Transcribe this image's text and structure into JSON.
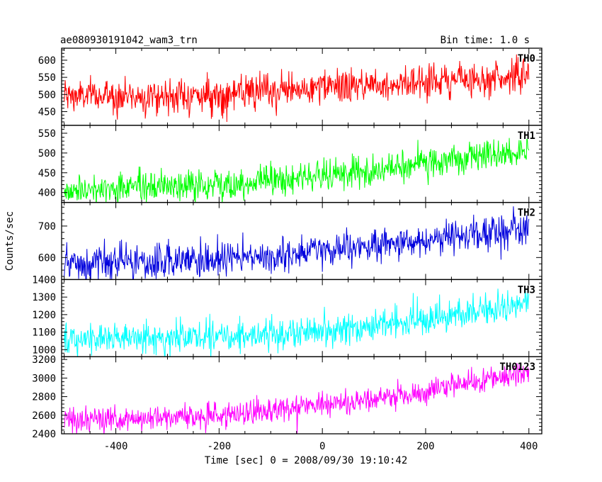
{
  "chart_data": {
    "type": "line",
    "title": "ae080930191042_wam3_trn",
    "subtitle": "Bin time: 1.0 s",
    "xlabel": "Time [sec] 0 = 2008/09/30 19:10:42",
    "ylabel": "Counts/sec",
    "xlim": [
      -505,
      425
    ],
    "x_range": [
      -500,
      400
    ],
    "x_ticks": [
      -400,
      -200,
      0,
      200,
      400
    ],
    "grid": false,
    "panels": [
      {
        "name": "TH0",
        "color": "#ff0000",
        "ylim": [
          410,
          635
        ],
        "y_ticks": [
          450,
          500,
          550,
          600
        ],
        "trend": [
          {
            "x": -500,
            "y": 495
          },
          {
            "x": -200,
            "y": 497
          },
          {
            "x": 100,
            "y": 530
          },
          {
            "x": 400,
            "y": 555
          }
        ],
        "noise": 25
      },
      {
        "name": "TH1",
        "color": "#00ff00",
        "ylim": [
          375,
          570
        ],
        "y_ticks": [
          400,
          450,
          500,
          550
        ],
        "trend": [
          {
            "x": -500,
            "y": 405
          },
          {
            "x": -200,
            "y": 420
          },
          {
            "x": 100,
            "y": 455
          },
          {
            "x": 400,
            "y": 505
          }
        ],
        "noise": 20
      },
      {
        "name": "TH2",
        "color": "#0000dd",
        "ylim": [
          530,
          775
        ],
        "y_ticks": [
          600,
          700
        ],
        "y_tick_labels": [
          "600",
          "700"
        ],
        "trend": [
          {
            "x": -500,
            "y": 575
          },
          {
            "x": -200,
            "y": 590
          },
          {
            "x": 100,
            "y": 635
          },
          {
            "x": 400,
            "y": 695
          }
        ],
        "noise": 28
      },
      {
        "name": "TH3",
        "color": "#00ffff",
        "ylim": [
          960,
          1400
        ],
        "y_ticks": [
          1000,
          1100,
          1200,
          1300,
          1400
        ],
        "trend": [
          {
            "x": -500,
            "y": 1055
          },
          {
            "x": -200,
            "y": 1075
          },
          {
            "x": 100,
            "y": 1130
          },
          {
            "x": 400,
            "y": 1260
          }
        ],
        "noise": 45
      },
      {
        "name": "TH0123",
        "color": "#ff00ff",
        "ylim": [
          2400,
          3230
        ],
        "y_ticks": [
          2400,
          2600,
          2800,
          3000,
          3200
        ],
        "trend": [
          {
            "x": -500,
            "y": 2540
          },
          {
            "x": -200,
            "y": 2600
          },
          {
            "x": 100,
            "y": 2760
          },
          {
            "x": 400,
            "y": 3060
          }
        ],
        "noise": 70
      }
    ]
  }
}
